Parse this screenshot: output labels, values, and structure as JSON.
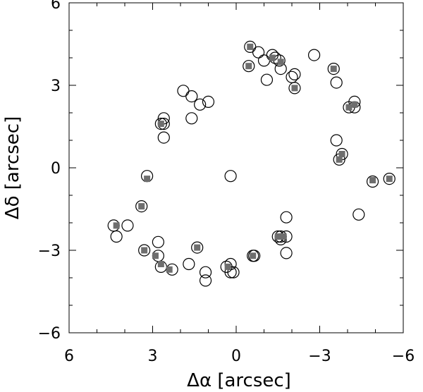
{
  "chart_data": {
    "type": "scatter",
    "title": "",
    "xlabel": "Δα  [arcsec]",
    "ylabel": "Δδ  [arcsec]",
    "xlim": [
      6,
      -6
    ],
    "ylim": [
      -6,
      6
    ],
    "xticks": [
      6,
      3,
      0,
      -3,
      -6
    ],
    "yticks": [
      -6,
      -3,
      0,
      3,
      6
    ],
    "xtick_labels": [
      "6",
      "3",
      "0",
      "−3",
      "−6"
    ],
    "ytick_labels": [
      "−6",
      "−3",
      "0",
      "3",
      "6"
    ],
    "grid": false,
    "series": [
      {
        "marker": "open-circle",
        "color": "#000000",
        "points": [
          [
            -0.5,
            4.4
          ],
          [
            -0.8,
            4.2
          ],
          [
            -1.0,
            3.9
          ],
          [
            -1.3,
            4.1
          ],
          [
            -1.4,
            4.0
          ],
          [
            -1.55,
            3.9
          ],
          [
            -1.6,
            3.6
          ],
          [
            -1.1,
            3.2
          ],
          [
            -2.0,
            3.3
          ],
          [
            -2.1,
            3.4
          ],
          [
            -2.8,
            4.1
          ],
          [
            -0.45,
            3.7
          ],
          [
            -3.5,
            3.6
          ],
          [
            -3.6,
            3.1
          ],
          [
            -2.1,
            2.9
          ],
          [
            -4.25,
            2.4
          ],
          [
            -4.05,
            2.2
          ],
          [
            -4.25,
            2.2
          ],
          [
            -3.6,
            1.0
          ],
          [
            -3.8,
            0.5
          ],
          [
            -3.7,
            0.3
          ],
          [
            -4.9,
            -0.5
          ],
          [
            -5.5,
            -0.4
          ],
          [
            -4.4,
            -1.7
          ],
          [
            -1.8,
            -1.8
          ],
          [
            -1.5,
            -2.5
          ],
          [
            -1.6,
            -2.5
          ],
          [
            -1.8,
            -2.5
          ],
          [
            -1.6,
            -2.6
          ],
          [
            -1.8,
            -3.1
          ],
          [
            -0.65,
            -3.2
          ],
          [
            -0.6,
            -3.2
          ],
          [
            0.2,
            -3.5
          ],
          [
            0.35,
            -3.6
          ],
          [
            0.2,
            -3.8
          ],
          [
            0.1,
            -3.8
          ],
          [
            1.1,
            -3.8
          ],
          [
            1.1,
            -4.1
          ],
          [
            1.7,
            -3.5
          ],
          [
            1.4,
            -2.9
          ],
          [
            2.3,
            -3.7
          ],
          [
            2.7,
            -3.6
          ],
          [
            2.8,
            -3.2
          ],
          [
            2.8,
            -2.7
          ],
          [
            3.3,
            -3.0
          ],
          [
            3.4,
            -1.4
          ],
          [
            3.2,
            -0.3
          ],
          [
            4.3,
            -2.5
          ],
          [
            4.4,
            -2.1
          ],
          [
            3.9,
            -2.1
          ],
          [
            2.6,
            1.1
          ],
          [
            2.6,
            1.6
          ],
          [
            2.6,
            1.8
          ],
          [
            2.7,
            1.6
          ],
          [
            1.6,
            1.8
          ],
          [
            1.9,
            2.8
          ],
          [
            1.6,
            2.6
          ],
          [
            1.3,
            2.3
          ],
          [
            1.0,
            2.4
          ],
          [
            0.2,
            -0.3
          ]
        ]
      },
      {
        "marker": "filled-square",
        "color": "#6e6e6e",
        "points": [
          [
            -0.5,
            4.4
          ],
          [
            -0.45,
            3.7
          ],
          [
            -1.3,
            4.0
          ],
          [
            -1.6,
            3.85
          ],
          [
            -2.1,
            2.9
          ],
          [
            -3.5,
            3.6
          ],
          [
            -4.05,
            2.2
          ],
          [
            -4.25,
            2.3
          ],
          [
            -3.7,
            0.3
          ],
          [
            -3.8,
            0.5
          ],
          [
            -4.9,
            -0.45
          ],
          [
            -5.5,
            -0.4
          ],
          [
            -1.5,
            -2.5
          ],
          [
            -1.7,
            -2.5
          ],
          [
            -0.6,
            -3.2
          ],
          [
            0.3,
            -3.6
          ],
          [
            1.4,
            -2.9
          ],
          [
            2.4,
            -3.7
          ],
          [
            2.7,
            -3.5
          ],
          [
            2.9,
            -3.2
          ],
          [
            3.3,
            -3.0
          ],
          [
            3.4,
            -1.4
          ],
          [
            3.2,
            -0.4
          ],
          [
            4.3,
            -2.1
          ],
          [
            2.7,
            1.6
          ]
        ]
      }
    ]
  }
}
